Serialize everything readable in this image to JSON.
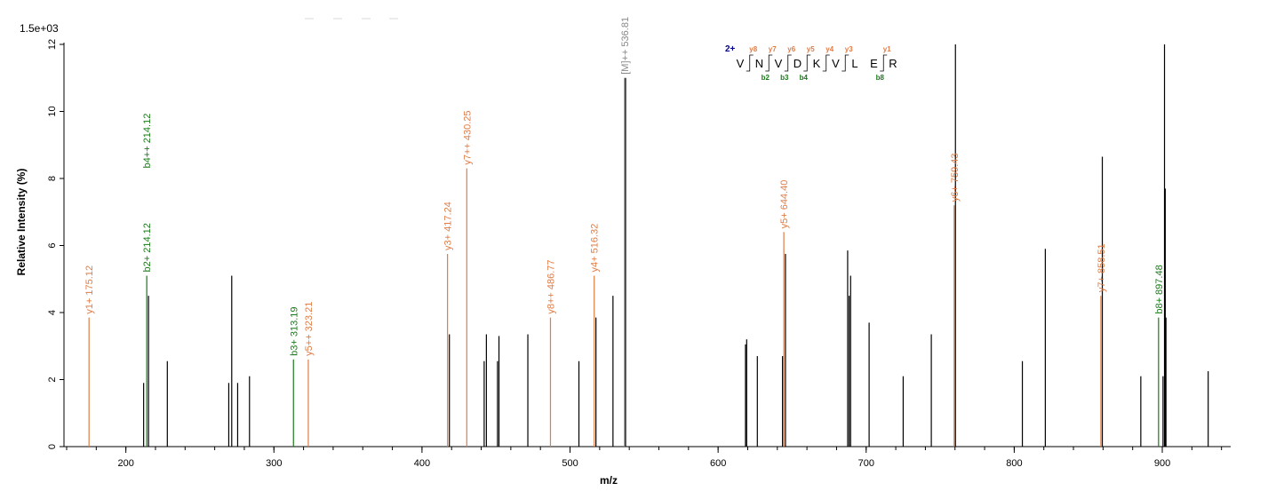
{
  "chart_data": {
    "type": "bar",
    "scale_label": "1.5e+03",
    "xlabel": "m/z",
    "ylabel": "Relative  Intensity (%)",
    "xlim": [
      160,
      945
    ],
    "ylim": [
      0,
      12
    ],
    "x_ticks": [
      200,
      300,
      400,
      500,
      600,
      700,
      800,
      900
    ],
    "y_ticks": [
      0,
      2,
      4,
      6,
      8,
      10,
      12
    ],
    "colors": {
      "unannotated": "#000000",
      "y_ion": "#e07c45",
      "b_ion": "#1a7a1a",
      "precursor": "#888888"
    },
    "peaks": [
      {
        "mz": 212.0,
        "intensity": 1.9
      },
      {
        "mz": 215.3,
        "intensity": 4.5
      },
      {
        "mz": 228.0,
        "intensity": 2.55
      },
      {
        "mz": 269.5,
        "intensity": 1.9
      },
      {
        "mz": 271.5,
        "intensity": 5.1
      },
      {
        "mz": 275.5,
        "intensity": 1.9
      },
      {
        "mz": 283.5,
        "intensity": 2.1
      },
      {
        "mz": 418.5,
        "intensity": 3.35
      },
      {
        "mz": 442.0,
        "intensity": 2.55
      },
      {
        "mz": 443.5,
        "intensity": 3.35
      },
      {
        "mz": 451.0,
        "intensity": 2.55
      },
      {
        "mz": 452.0,
        "intensity": 3.3
      },
      {
        "mz": 471.5,
        "intensity": 3.35
      },
      {
        "mz": 506.0,
        "intensity": 2.55
      },
      {
        "mz": 517.5,
        "intensity": 3.85
      },
      {
        "mz": 529.0,
        "intensity": 4.5
      },
      {
        "mz": 537.5,
        "intensity": 11.0
      },
      {
        "mz": 618.5,
        "intensity": 3.05
      },
      {
        "mz": 619.3,
        "intensity": 3.2
      },
      {
        "mz": 626.5,
        "intensity": 2.7
      },
      {
        "mz": 643.5,
        "intensity": 2.7
      },
      {
        "mz": 645.5,
        "intensity": 5.75
      },
      {
        "mz": 687.5,
        "intensity": 5.85
      },
      {
        "mz": 688.5,
        "intensity": 4.5
      },
      {
        "mz": 689.5,
        "intensity": 5.1
      },
      {
        "mz": 702.0,
        "intensity": 3.7
      },
      {
        "mz": 725.0,
        "intensity": 2.1
      },
      {
        "mz": 744.0,
        "intensity": 3.35
      },
      {
        "mz": 760.3,
        "intensity": 12.0
      },
      {
        "mz": 805.5,
        "intensity": 2.55
      },
      {
        "mz": 821.0,
        "intensity": 5.9
      },
      {
        "mz": 859.5,
        "intensity": 8.65
      },
      {
        "mz": 885.5,
        "intensity": 2.1
      },
      {
        "mz": 900.5,
        "intensity": 2.1
      },
      {
        "mz": 901.5,
        "intensity": 12.0
      },
      {
        "mz": 902.0,
        "intensity": 7.7
      },
      {
        "mz": 902.5,
        "intensity": 3.85
      },
      {
        "mz": 931.0,
        "intensity": 2.25
      }
    ],
    "annotated_peaks": [
      {
        "mz": 175.12,
        "intensity": 3.85,
        "kind": "y_ion",
        "label": "y1+ 175.12"
      },
      {
        "mz": 214.12,
        "intensity": 5.1,
        "kind": "b_ion",
        "label": "b2+ 214.12"
      },
      {
        "mz": 214.12,
        "intensity": 8.2,
        "kind": "b_ion",
        "label": "b4++ 214.12",
        "label_only": true
      },
      {
        "mz": 313.19,
        "intensity": 2.6,
        "kind": "b_ion",
        "label": "b3+ 313.19"
      },
      {
        "mz": 323.21,
        "intensity": 2.6,
        "kind": "y_ion",
        "label": "y5++ 323.21"
      },
      {
        "mz": 417.24,
        "intensity": 5.75,
        "kind": "y_ion",
        "label": "y3+ 417.24"
      },
      {
        "mz": 430.25,
        "intensity": 8.3,
        "kind": "y_ion",
        "label": "y7++ 430.25"
      },
      {
        "mz": 486.77,
        "intensity": 3.85,
        "kind": "y_ion",
        "label": "y8++ 486.77"
      },
      {
        "mz": 516.32,
        "intensity": 5.1,
        "kind": "y_ion",
        "label": "y4+ 516.32"
      },
      {
        "mz": 536.81,
        "intensity": 11.0,
        "kind": "precursor",
        "label": "[M]++ 536.81"
      },
      {
        "mz": 644.4,
        "intensity": 6.4,
        "kind": "y_ion",
        "label": "y5+ 644.40"
      },
      {
        "mz": 759.43,
        "intensity": 7.2,
        "kind": "y_ion",
        "label": "y6+ 759.43"
      },
      {
        "mz": 858.51,
        "intensity": 4.5,
        "kind": "y_ion",
        "label": "y7+ 858.51"
      },
      {
        "mz": 897.48,
        "intensity": 3.85,
        "kind": "b_ion",
        "label": "b8+ 897.48"
      }
    ],
    "sequence": {
      "charge": "2+",
      "residues": [
        "V",
        "N",
        "V",
        "D",
        "K",
        "V",
        "L",
        "E",
        "R"
      ],
      "y_ions": [
        "y8",
        "y7",
        "y6",
        "y5",
        "y4",
        "y3",
        "",
        "y1"
      ],
      "b_ions": [
        "",
        "b2",
        "b3",
        "b4",
        "",
        "",
        "",
        "b8"
      ]
    }
  }
}
